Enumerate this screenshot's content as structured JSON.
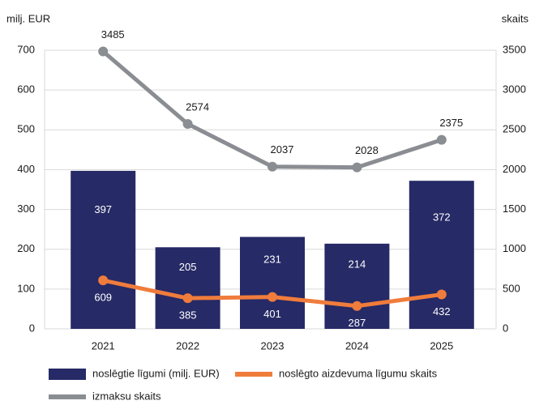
{
  "chart_data": {
    "type": "combo",
    "y_label": "milj. EUR",
    "y2_label": "skaits",
    "categories": [
      "2021",
      "2022",
      "2023",
      "2024",
      "2025"
    ],
    "series": [
      {
        "name": "noslēgtie līgumi (milj. EUR)",
        "type": "bar",
        "color": "#262a66",
        "values": [
          397,
          205,
          231,
          214,
          372
        ]
      },
      {
        "name": "noslēgto aizdevuma līgumu skaits",
        "type": "line",
        "axis": "y2",
        "color": "#f07c3c",
        "values": [
          609,
          385,
          401,
          287,
          432
        ]
      },
      {
        "name": "izmaksu skaits",
        "type": "line",
        "axis": "y2",
        "color": "#8a8d91",
        "values": [
          3485,
          2574,
          2037,
          2028,
          2375
        ]
      }
    ],
    "ylim": [
      0,
      700
    ],
    "yticks": [
      0,
      100,
      200,
      300,
      400,
      500,
      600,
      700
    ],
    "y2lim": [
      0,
      3500
    ],
    "y2ticks": [
      0,
      500,
      1000,
      1500,
      2000,
      2500,
      3000,
      3500
    ],
    "grid": true,
    "legend": "bottom"
  }
}
